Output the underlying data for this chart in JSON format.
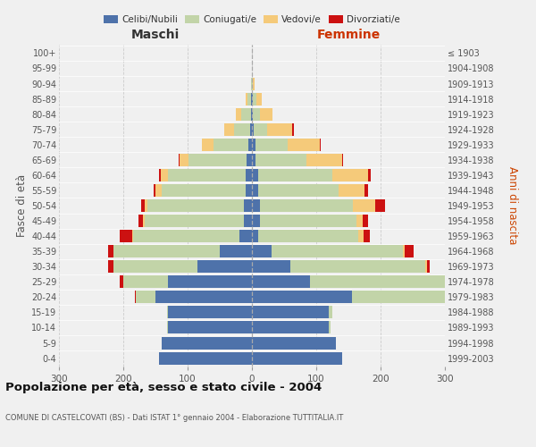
{
  "age_groups": [
    "0-4",
    "5-9",
    "10-14",
    "15-19",
    "20-24",
    "25-29",
    "30-34",
    "35-39",
    "40-44",
    "45-49",
    "50-54",
    "55-59",
    "60-64",
    "65-69",
    "70-74",
    "75-79",
    "80-84",
    "85-89",
    "90-94",
    "95-99",
    "100+"
  ],
  "birth_years": [
    "1999-2003",
    "1994-1998",
    "1989-1993",
    "1984-1988",
    "1979-1983",
    "1974-1978",
    "1969-1973",
    "1964-1968",
    "1959-1963",
    "1954-1958",
    "1949-1953",
    "1944-1948",
    "1939-1943",
    "1934-1938",
    "1929-1933",
    "1924-1928",
    "1919-1923",
    "1914-1918",
    "1909-1913",
    "1904-1908",
    "≤ 1903"
  ],
  "male": {
    "celibi": [
      145,
      140,
      130,
      130,
      150,
      130,
      85,
      50,
      20,
      12,
      12,
      10,
      10,
      8,
      5,
      3,
      2,
      2,
      0,
      0,
      0
    ],
    "coniugati": [
      0,
      0,
      2,
      2,
      30,
      70,
      130,
      165,
      165,
      155,
      150,
      130,
      120,
      90,
      55,
      25,
      15,
      5,
      2,
      0,
      0
    ],
    "vedovi": [
      0,
      0,
      0,
      0,
      0,
      0,
      0,
      0,
      1,
      2,
      5,
      10,
      12,
      15,
      18,
      15,
      8,
      3,
      0,
      0,
      0
    ],
    "divorziati": [
      0,
      0,
      0,
      0,
      2,
      5,
      8,
      8,
      20,
      8,
      5,
      3,
      2,
      1,
      0,
      0,
      0,
      0,
      0,
      0,
      0
    ]
  },
  "female": {
    "nubili": [
      140,
      130,
      120,
      120,
      155,
      90,
      60,
      30,
      10,
      12,
      12,
      10,
      10,
      5,
      5,
      3,
      2,
      2,
      0,
      0,
      0
    ],
    "coniugate": [
      0,
      0,
      2,
      5,
      200,
      210,
      210,
      205,
      155,
      150,
      145,
      125,
      115,
      80,
      50,
      20,
      10,
      5,
      2,
      0,
      0
    ],
    "vedove": [
      0,
      0,
      0,
      0,
      2,
      2,
      2,
      2,
      8,
      10,
      35,
      40,
      55,
      55,
      50,
      40,
      20,
      8,
      2,
      0,
      0
    ],
    "divorziate": [
      0,
      0,
      0,
      0,
      2,
      5,
      5,
      15,
      10,
      8,
      15,
      5,
      5,
      1,
      2,
      2,
      0,
      0,
      0,
      0,
      0
    ]
  },
  "colors": {
    "celibi": "#4e72aa",
    "coniugati": "#c2d4a8",
    "vedovi": "#f5ca7a",
    "divorziati": "#cc1111"
  },
  "title": "Popolazione per età, sesso e stato civile - 2004",
  "subtitle": "COMUNE DI CASTELCOVATI (BS) - Dati ISTAT 1° gennaio 2004 - Elaborazione TUTTITALIA.IT",
  "xlabel_left": "Maschi",
  "xlabel_right": "Femmine",
  "ylabel_left": "Fasce di età",
  "ylabel_right": "Anni di nascita",
  "xlim": 300,
  "legend_labels": [
    "Celibi/Nubili",
    "Coniugati/e",
    "Vedovi/e",
    "Divorziati/e"
  ],
  "background_color": "#f0f0f0"
}
